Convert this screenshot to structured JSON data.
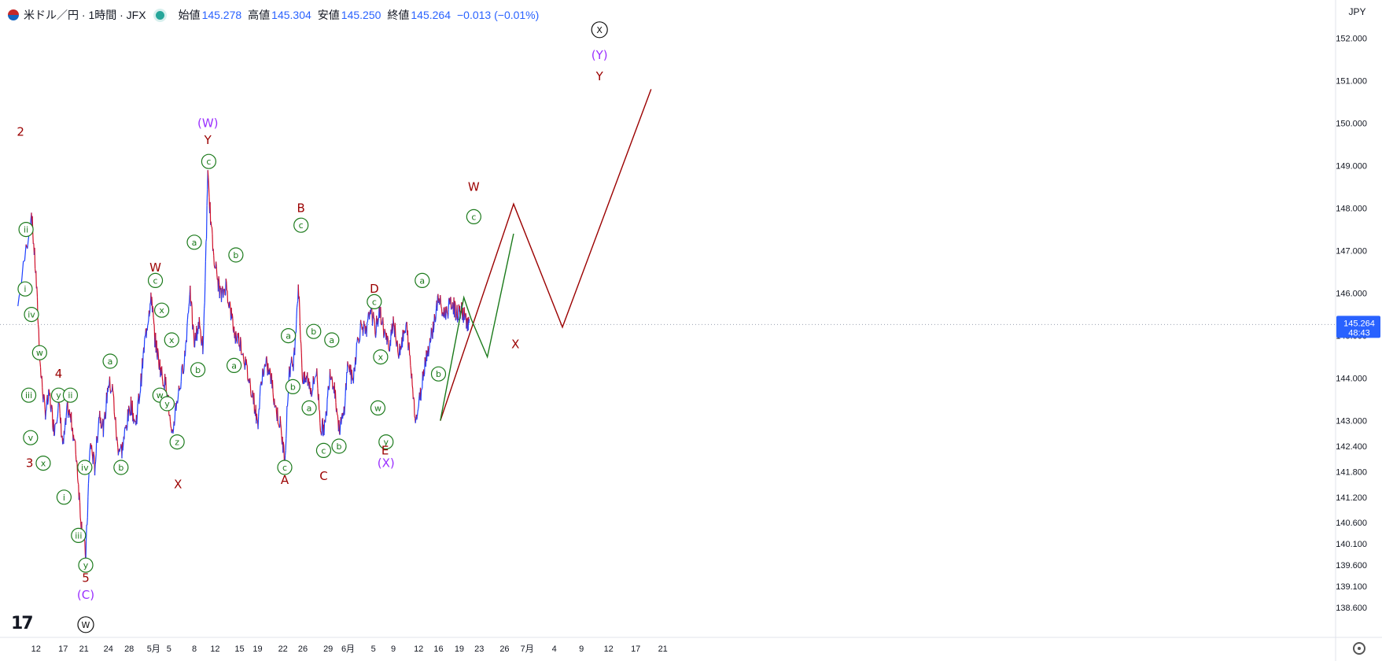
{
  "header": {
    "symbol": "米ドル／円 · 1時間 · JFX",
    "open_label": "始値",
    "open_value": "145.278",
    "high_label": "高値",
    "high_value": "145.304",
    "low_label": "安値",
    "low_value": "145.250",
    "close_label": "終値",
    "close_value": "145.264",
    "change": "−0.013 (−0.01%)"
  },
  "axis": {
    "currency": "JPY",
    "current_price_label": "145.264",
    "countdown_label": "48:43"
  },
  "colors": {
    "up": "#1e40ff",
    "down": "#d0102a",
    "price_tag": "#2962ff",
    "label_green": "#1b7a1b",
    "label_red": "#9b0000",
    "label_purple": "#9b30ff",
    "label_black": "#111111"
  },
  "chart_data": {
    "type": "line",
    "title": "",
    "xlabel": "",
    "ylabel": "",
    "ylim": [
      137.9,
      152.9
    ],
    "y_ticks": [
      "152.000",
      "151.000",
      "150.000",
      "149.000",
      "148.000",
      "147.000",
      "146.000",
      "145.000",
      "144.000",
      "143.000",
      "142.400",
      "141.800",
      "141.200",
      "140.600",
      "140.100",
      "139.600",
      "139.100",
      "138.600"
    ],
    "y_tick_values": [
      152.0,
      151.0,
      150.0,
      149.0,
      148.0,
      147.0,
      146.0,
      145.0,
      144.0,
      143.0,
      142.4,
      141.8,
      141.2,
      140.6,
      140.1,
      139.6,
      139.1,
      138.6
    ],
    "x_ticks": [
      "12",
      "17",
      "21",
      "24",
      "28",
      "5月",
      "5",
      "8",
      "12",
      "15",
      "19",
      "22",
      "26",
      "29",
      "6月",
      "5",
      "9",
      "12",
      "16",
      "19",
      "23",
      "26",
      "7月",
      "4",
      "9",
      "12",
      "17",
      "21"
    ],
    "x_tick_positions": [
      0.5,
      3.5,
      5.8,
      8.5,
      10.8,
      13.5,
      15.2,
      18.0,
      20.3,
      23.0,
      25.0,
      27.8,
      30.0,
      32.8,
      35.0,
      37.8,
      40.0,
      42.8,
      45.0,
      47.3,
      49.5,
      52.3,
      54.8,
      57.8,
      60.8,
      63.8,
      66.8,
      69.8
    ],
    "price_path": {
      "name": "",
      "x": [
        -1.5,
        0,
        0.5,
        1,
        1.5,
        2,
        2.5,
        3,
        3.5,
        4,
        4.5,
        5,
        5.5,
        6,
        6.5,
        7,
        7.5,
        8,
        8.5,
        9,
        9.5,
        10,
        10.5,
        11,
        11.5,
        12,
        12.5,
        13,
        13.3,
        13.6,
        14,
        14.5,
        15,
        15.5,
        16,
        16.5,
        17,
        17.5,
        18,
        18.5,
        19,
        19.5,
        20,
        20.5,
        21,
        21.5,
        22,
        22.5,
        23,
        23.5,
        24,
        24.5,
        25,
        25.5,
        26,
        26.5,
        27,
        27.5,
        28,
        28.5,
        29,
        29.5,
        30,
        30.5,
        31,
        31.5,
        32,
        32.5,
        33,
        33.5,
        34,
        34.5,
        35,
        35.5,
        36,
        36.5,
        37,
        37.5,
        38,
        38.5,
        39,
        39.5,
        40,
        40.5,
        41,
        41.5,
        42,
        42.5,
        43,
        43.5,
        44,
        44.5,
        45,
        45.5,
        46,
        46.5,
        47,
        47.5,
        48,
        48.4
      ],
      "y": [
        145.7,
        147.9,
        146.4,
        144.2,
        143.2,
        143.6,
        142.8,
        143.4,
        142.4,
        143.3,
        142.9,
        142.1,
        140.6,
        139.8,
        142.5,
        141.9,
        143.2,
        142.8,
        143.9,
        143.7,
        142.4,
        142.3,
        142.9,
        143.4,
        142.9,
        143.7,
        144.8,
        145.6,
        145.9,
        145.0,
        144.5,
        144.0,
        143.8,
        142.5,
        143.4,
        143.9,
        144.6,
        146.1,
        144.8,
        145.3,
        144.7,
        148.7,
        147.2,
        146.4,
        145.9,
        146.2,
        145.6,
        145.0,
        144.9,
        144.5,
        144.0,
        143.6,
        142.9,
        144.1,
        144.3,
        144.0,
        143.3,
        142.9,
        142.1,
        144.2,
        144.4,
        146.2,
        143.9,
        144.0,
        143.7,
        144.2,
        142.8,
        142.9,
        144.2,
        143.8,
        142.8,
        143.1,
        144.4,
        143.9,
        144.8,
        145.3,
        145.0,
        145.7,
        145.1,
        145.6,
        145.1,
        144.7,
        145.4,
        144.6,
        144.9,
        145.2,
        144.1,
        143.0,
        143.6,
        144.4,
        144.8,
        145.3,
        145.9,
        145.5,
        145.6,
        145.8,
        145.5,
        145.6,
        145.4,
        145.26
      ]
    },
    "projection_green": {
      "x": [
        45.2,
        47.8,
        48.6,
        50.4,
        53.3
      ],
      "y": [
        143.0,
        145.9,
        145.4,
        144.5,
        147.4
      ]
    },
    "projection_red": {
      "x": [
        45.2,
        53.3,
        58.7,
        68.5
      ],
      "y": [
        143.0,
        148.1,
        145.2,
        150.8
      ]
    },
    "wave_labels": [
      {
        "text": "2",
        "x": -1.2,
        "y": 149.8,
        "color": "red",
        "circled": false
      },
      {
        "text": "ii",
        "x": -0.6,
        "y": 147.5,
        "color": "green",
        "circled": true
      },
      {
        "text": "i",
        "x": -0.7,
        "y": 146.1,
        "color": "green",
        "circled": true
      },
      {
        "text": "iv",
        "x": 0,
        "y": 145.5,
        "color": "green",
        "circled": true
      },
      {
        "text": "w",
        "x": 0.9,
        "y": 144.6,
        "color": "green",
        "circled": true
      },
      {
        "text": "iii",
        "x": -0.3,
        "y": 143.6,
        "color": "green",
        "circled": true
      },
      {
        "text": "v",
        "x": -0.1,
        "y": 142.6,
        "color": "green",
        "circled": true
      },
      {
        "text": "3",
        "x": -0.2,
        "y": 142.0,
        "color": "red",
        "circled": false
      },
      {
        "text": "x",
        "x": 1.3,
        "y": 142.0,
        "color": "green",
        "circled": true
      },
      {
        "text": "4",
        "x": 3.0,
        "y": 144.1,
        "color": "red",
        "circled": false
      },
      {
        "text": "y",
        "x": 3.0,
        "y": 143.6,
        "color": "green",
        "circled": true
      },
      {
        "text": "ii",
        "x": 4.3,
        "y": 143.6,
        "color": "green",
        "circled": true
      },
      {
        "text": "i",
        "x": 3.6,
        "y": 141.2,
        "color": "green",
        "circled": true
      },
      {
        "text": "iv",
        "x": 5.9,
        "y": 141.9,
        "color": "green",
        "circled": true
      },
      {
        "text": "iii",
        "x": 5.2,
        "y": 140.3,
        "color": "green",
        "circled": true
      },
      {
        "text": "y",
        "x": 6.0,
        "y": 139.6,
        "color": "green",
        "circled": true
      },
      {
        "text": "5",
        "x": 6.0,
        "y": 139.3,
        "color": "red",
        "circled": false
      },
      {
        "text": "(C)",
        "x": 6.0,
        "y": 138.9,
        "color": "purple",
        "circled": false
      },
      {
        "text": "W",
        "x": 6.0,
        "y": 138.2,
        "color": "black",
        "circled": true
      },
      {
        "text": "a",
        "x": 8.7,
        "y": 144.4,
        "color": "green",
        "circled": true
      },
      {
        "text": "b",
        "x": 9.9,
        "y": 141.9,
        "color": "green",
        "circled": true
      },
      {
        "text": "W",
        "x": 13.7,
        "y": 146.6,
        "color": "red",
        "circled": false
      },
      {
        "text": "c",
        "x": 13.7,
        "y": 146.3,
        "color": "green",
        "circled": true
      },
      {
        "text": "x",
        "x": 14.4,
        "y": 145.6,
        "color": "green",
        "circled": true
      },
      {
        "text": "x",
        "x": 15.5,
        "y": 144.9,
        "color": "green",
        "circled": true
      },
      {
        "text": "w",
        "x": 14.2,
        "y": 143.6,
        "color": "green",
        "circled": true
      },
      {
        "text": "y",
        "x": 15.0,
        "y": 143.4,
        "color": "green",
        "circled": true
      },
      {
        "text": "z",
        "x": 16.1,
        "y": 142.5,
        "color": "green",
        "circled": true
      },
      {
        "text": "X",
        "x": 16.2,
        "y": 141.5,
        "color": "red",
        "circled": false
      },
      {
        "text": "a",
        "x": 18.0,
        "y": 147.2,
        "color": "green",
        "circled": true
      },
      {
        "text": "b",
        "x": 18.4,
        "y": 144.2,
        "color": "green",
        "circled": true
      },
      {
        "text": "(W)",
        "x": 19.5,
        "y": 150.0,
        "color": "purple",
        "circled": false
      },
      {
        "text": "Y",
        "x": 19.5,
        "y": 149.6,
        "color": "red",
        "circled": false
      },
      {
        "text": "c",
        "x": 19.6,
        "y": 149.1,
        "color": "green",
        "circled": true
      },
      {
        "text": "b",
        "x": 22.6,
        "y": 146.9,
        "color": "green",
        "circled": true
      },
      {
        "text": "a",
        "x": 22.4,
        "y": 144.3,
        "color": "green",
        "circled": true
      },
      {
        "text": "a",
        "x": 28.4,
        "y": 145.0,
        "color": "green",
        "circled": true
      },
      {
        "text": "b",
        "x": 28.9,
        "y": 143.8,
        "color": "green",
        "circled": true
      },
      {
        "text": "c",
        "x": 28.0,
        "y": 141.9,
        "color": "green",
        "circled": true
      },
      {
        "text": "A",
        "x": 28.0,
        "y": 141.6,
        "color": "red",
        "circled": false
      },
      {
        "text": "B",
        "x": 29.8,
        "y": 148.0,
        "color": "red",
        "circled": false
      },
      {
        "text": "c",
        "x": 29.8,
        "y": 147.6,
        "color": "green",
        "circled": true
      },
      {
        "text": "b",
        "x": 31.2,
        "y": 145.1,
        "color": "green",
        "circled": true
      },
      {
        "text": "a",
        "x": 30.7,
        "y": 143.3,
        "color": "green",
        "circled": true
      },
      {
        "text": "c",
        "x": 32.3,
        "y": 142.3,
        "color": "green",
        "circled": true
      },
      {
        "text": "C",
        "x": 32.3,
        "y": 141.7,
        "color": "red",
        "circled": false
      },
      {
        "text": "a",
        "x": 33.2,
        "y": 144.9,
        "color": "green",
        "circled": true
      },
      {
        "text": "b",
        "x": 34.0,
        "y": 142.4,
        "color": "green",
        "circled": true
      },
      {
        "text": "D",
        "x": 37.9,
        "y": 146.1,
        "color": "red",
        "circled": false
      },
      {
        "text": "c",
        "x": 37.9,
        "y": 145.8,
        "color": "green",
        "circled": true
      },
      {
        "text": "x",
        "x": 38.6,
        "y": 144.5,
        "color": "green",
        "circled": true
      },
      {
        "text": "w",
        "x": 38.3,
        "y": 143.3,
        "color": "green",
        "circled": true
      },
      {
        "text": "y",
        "x": 39.2,
        "y": 142.5,
        "color": "green",
        "circled": true
      },
      {
        "text": "E",
        "x": 39.1,
        "y": 142.3,
        "color": "red",
        "circled": false
      },
      {
        "text": "(X)",
        "x": 39.2,
        "y": 142.0,
        "color": "purple",
        "circled": false
      },
      {
        "text": "a",
        "x": 43.2,
        "y": 146.3,
        "color": "green",
        "circled": true
      },
      {
        "text": "b",
        "x": 45.0,
        "y": 144.1,
        "color": "green",
        "circled": true
      },
      {
        "text": "W",
        "x": 48.9,
        "y": 148.5,
        "color": "red",
        "circled": false
      },
      {
        "text": "c",
        "x": 48.9,
        "y": 147.8,
        "color": "green",
        "circled": true
      },
      {
        "text": "X",
        "x": 53.5,
        "y": 144.8,
        "color": "red",
        "circled": false
      },
      {
        "text": "Y",
        "x": 62.8,
        "y": 151.1,
        "color": "red",
        "circled": false
      },
      {
        "text": "(Y)",
        "x": 62.8,
        "y": 151.6,
        "color": "purple",
        "circled": false
      },
      {
        "text": "X",
        "x": 62.8,
        "y": 152.2,
        "color": "black",
        "circled": true
      }
    ]
  }
}
